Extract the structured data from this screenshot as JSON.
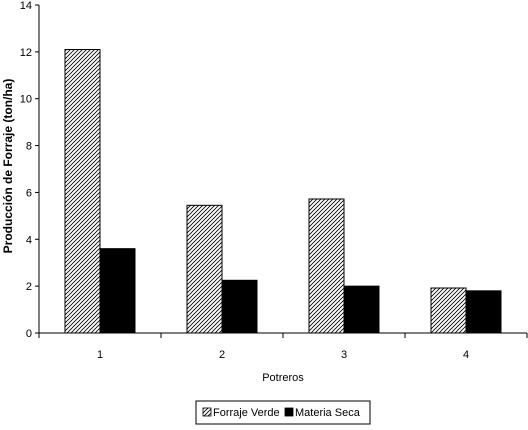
{
  "chart_data": {
    "type": "bar",
    "categories": [
      "1",
      "2",
      "3",
      "4"
    ],
    "series": [
      {
        "name": "Forraje Verde",
        "values": [
          12.1,
          5.45,
          5.72,
          1.92
        ],
        "pattern": "hatch",
        "color": "#000000"
      },
      {
        "name": "Materia Seca",
        "values": [
          3.6,
          2.25,
          2.0,
          1.8
        ],
        "pattern": "solid",
        "color": "#000000"
      }
    ],
    "title": "",
    "xlabel": "Potreros",
    "ylabel": "Producción de Forraje (ton/ha)",
    "ylim": [
      0,
      14
    ],
    "yticks": [
      "0",
      "2",
      "4",
      "6",
      "8",
      "10",
      "12",
      "14"
    ],
    "grid": false,
    "legend_position": "bottom"
  }
}
